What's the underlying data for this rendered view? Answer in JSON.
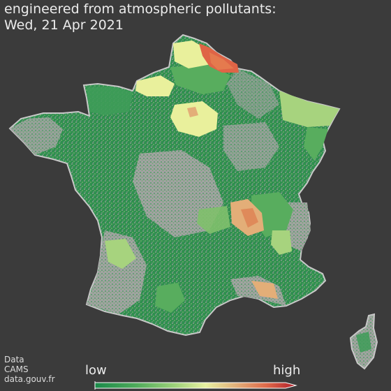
{
  "header": {
    "line1": "engineered from atmospheric pollutants:",
    "line2": "Wed, 21 Apr 2021"
  },
  "legend": {
    "low_label": "low",
    "high_label": "high",
    "colors": [
      "#1a8a4a",
      "#4daa5a",
      "#9fd27a",
      "#e8f0a0",
      "#e2b07a",
      "#df6a4a",
      "#b01e2a"
    ]
  },
  "credits": {
    "line1": "Data",
    "line2": "CAMS",
    "line3": "data.gouv.fr"
  },
  "map": {
    "land_color": "#9a9a9a",
    "border_color": "#d0d0d0",
    "levels": {
      "very_low": "#1e8c4e",
      "low": "#58ad5e",
      "moderate": "#a7d37e",
      "medium": "#e9f09c",
      "elevated": "#e3ae78",
      "high": "#df6446"
    }
  }
}
